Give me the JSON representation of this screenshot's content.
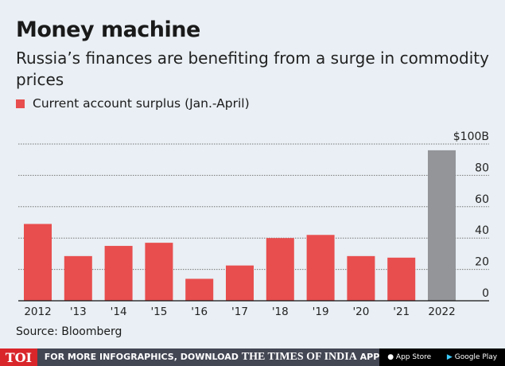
{
  "title": "Money machine",
  "subtitle": "Russia’s finances are benefiting from a surge in commodity prices",
  "source": "Source: Bloomberg",
  "footer": {
    "brand": "TOI",
    "promo_prefix": "FOR MORE INFOGRAPHICS, DOWNLOAD",
    "promo_name": "THE TIMES OF INDIA",
    "promo_suffix": "APP",
    "app_store": "App Store",
    "google_play": "Google Play"
  },
  "chart_data": {
    "type": "bar",
    "title": "Money machine",
    "categories": [
      "2012",
      "'13",
      "'14",
      "'15",
      "'16",
      "'17",
      "'18",
      "'19",
      "'20",
      "'21",
      "2022"
    ],
    "series": [
      {
        "name": "Current account surplus (Jan.-April)",
        "values": [
          49,
          28.5,
          35,
          37,
          14,
          22.5,
          40,
          42,
          28.5,
          27.5,
          96
        ]
      }
    ],
    "ylim": [
      0,
      100
    ],
    "yticks": [
      "0",
      "20",
      "40",
      "60",
      "80",
      "$100B"
    ],
    "ytick_values": [
      0,
      20,
      40,
      60,
      80,
      100
    ],
    "grid": true,
    "colors": {
      "default": "#e84e4e",
      "highlight": "#939598"
    },
    "highlight_category": "2022"
  }
}
